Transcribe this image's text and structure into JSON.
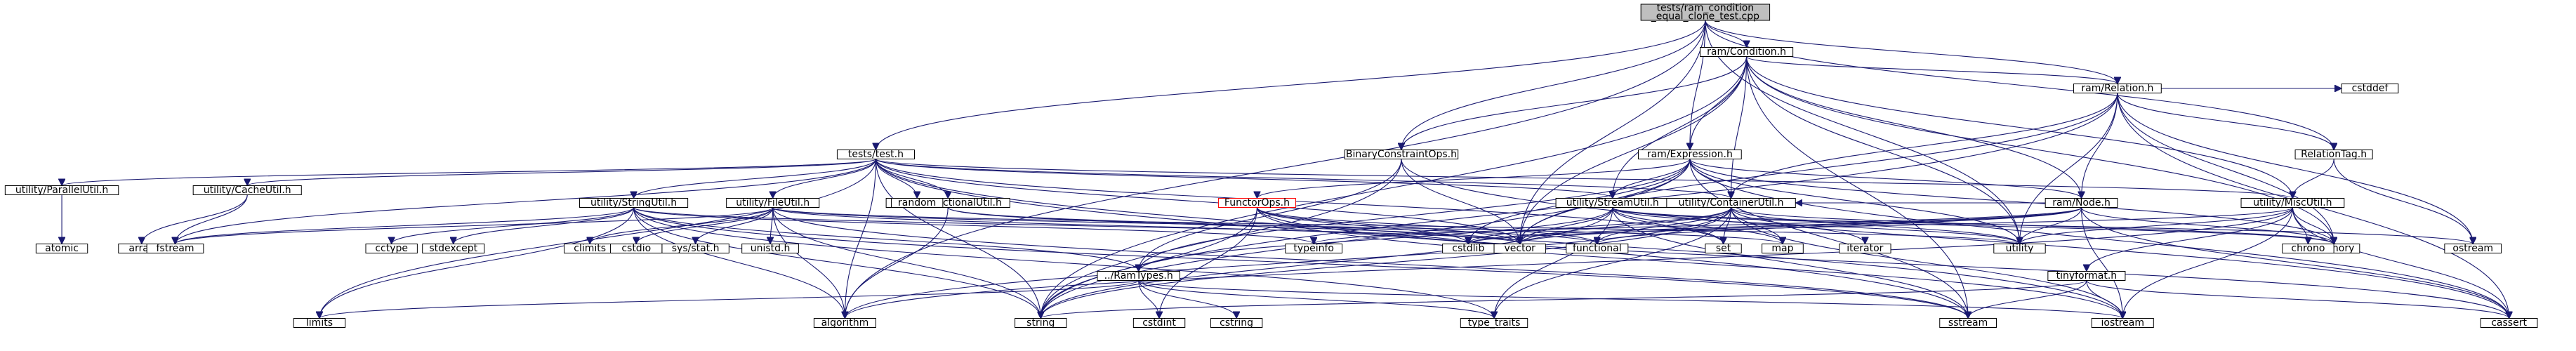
{
  "diagram": {
    "root": "tests_ram_condition_equal_clone_test",
    "nodes": [
      {
        "id": "tests_ram_condition_equal_clone_test",
        "lines": [
          "tests/ram_condition",
          "_equal_clone_test.cpp"
        ],
        "style": "root"
      },
      {
        "id": "ram_Condition_h",
        "lines": [
          "ram/Condition.h"
        ],
        "style": "file"
      },
      {
        "id": "ram_Relation_h",
        "lines": [
          "ram/Relation.h"
        ],
        "style": "file"
      },
      {
        "id": "BinaryConstraintOps_h",
        "lines": [
          "BinaryConstraintOps.h"
        ],
        "style": "file"
      },
      {
        "id": "ram_Expression_h",
        "lines": [
          "ram/Expression.h"
        ],
        "style": "file"
      },
      {
        "id": "tests_test_h",
        "lines": [
          "tests/test.h"
        ],
        "style": "file"
      },
      {
        "id": "RelationTag_h",
        "lines": [
          "RelationTag.h"
        ],
        "style": "file"
      },
      {
        "id": "utility_ParallelUtil_h",
        "lines": [
          "utility/ParallelUtil.h"
        ],
        "style": "file"
      },
      {
        "id": "utility_CacheUtil_h",
        "lines": [
          "utility/CacheUtil.h"
        ],
        "style": "file"
      },
      {
        "id": "utility_StringUtil_h",
        "lines": [
          "utility/StringUtil.h"
        ],
        "style": "file"
      },
      {
        "id": "utility_FileUtil_h",
        "lines": [
          "utility/FileUtil.h"
        ],
        "style": "file"
      },
      {
        "id": "utility_FunctionalUtil_h",
        "lines": [
          "utility/FunctionalUtil.h"
        ],
        "style": "file"
      },
      {
        "id": "FunctorOps_h",
        "lines": [
          "FunctorOps.h"
        ],
        "style": "red"
      },
      {
        "id": "utility_StreamUtil_h",
        "lines": [
          "utility/StreamUtil.h"
        ],
        "style": "file"
      },
      {
        "id": "utility_ContainerUtil_h",
        "lines": [
          "utility/ContainerUtil.h"
        ],
        "style": "file"
      },
      {
        "id": "ram_Node_h",
        "lines": [
          "ram/Node.h"
        ],
        "style": "file"
      },
      {
        "id": "utility_MiscUtil_h",
        "lines": [
          "utility/MiscUtil.h"
        ],
        "style": "file"
      },
      {
        "id": "RamTypes_h",
        "lines": [
          "../RamTypes.h"
        ],
        "style": "file"
      },
      {
        "id": "tinyformat_h",
        "lines": [
          "tinyformat.h"
        ],
        "style": "file"
      },
      {
        "id": "random",
        "lines": [
          "random"
        ],
        "style": "file"
      },
      {
        "id": "cstddef",
        "lines": [
          "cstddef"
        ],
        "style": "file"
      },
      {
        "id": "atomic",
        "lines": [
          "atomic"
        ],
        "style": "file"
      },
      {
        "id": "array",
        "lines": [
          "array"
        ],
        "style": "file"
      },
      {
        "id": "fstream",
        "lines": [
          "fstream"
        ],
        "style": "file"
      },
      {
        "id": "cctype",
        "lines": [
          "cctype"
        ],
        "style": "file"
      },
      {
        "id": "stdexcept",
        "lines": [
          "stdexcept"
        ],
        "style": "file"
      },
      {
        "id": "climits",
        "lines": [
          "climits"
        ],
        "style": "file"
      },
      {
        "id": "cstdio",
        "lines": [
          "cstdio"
        ],
        "style": "file"
      },
      {
        "id": "sys_stat_h",
        "lines": [
          "sys/stat.h"
        ],
        "style": "file"
      },
      {
        "id": "unistd_h",
        "lines": [
          "unistd.h"
        ],
        "style": "file"
      },
      {
        "id": "typeinfo",
        "lines": [
          "typeinfo"
        ],
        "style": "file"
      },
      {
        "id": "cstdlib",
        "lines": [
          "cstdlib"
        ],
        "style": "file"
      },
      {
        "id": "vector",
        "lines": [
          "vector"
        ],
        "style": "file"
      },
      {
        "id": "functional",
        "lines": [
          "functional"
        ],
        "style": "file"
      },
      {
        "id": "set",
        "lines": [
          "set"
        ],
        "style": "file"
      },
      {
        "id": "map",
        "lines": [
          "map"
        ],
        "style": "file"
      },
      {
        "id": "iterator",
        "lines": [
          "iterator"
        ],
        "style": "file"
      },
      {
        "id": "utility",
        "lines": [
          "utility"
        ],
        "style": "file"
      },
      {
        "id": "memory",
        "lines": [
          "memory"
        ],
        "style": "file"
      },
      {
        "id": "ostream",
        "lines": [
          "ostream"
        ],
        "style": "file"
      },
      {
        "id": "chrono",
        "lines": [
          "chrono"
        ],
        "style": "file"
      },
      {
        "id": "limits",
        "lines": [
          "limits"
        ],
        "style": "file"
      },
      {
        "id": "algorithm",
        "lines": [
          "algorithm"
        ],
        "style": "file"
      },
      {
        "id": "string",
        "lines": [
          "string"
        ],
        "style": "file"
      },
      {
        "id": "cstdint",
        "lines": [
          "cstdint"
        ],
        "style": "file"
      },
      {
        "id": "cstring",
        "lines": [
          "cstring"
        ],
        "style": "file"
      },
      {
        "id": "type_traits",
        "lines": [
          "type_traits"
        ],
        "style": "file"
      },
      {
        "id": "sstream",
        "lines": [
          "sstream"
        ],
        "style": "file"
      },
      {
        "id": "iostream",
        "lines": [
          "iostream"
        ],
        "style": "file"
      },
      {
        "id": "cassert",
        "lines": [
          "cassert"
        ],
        "style": "file"
      }
    ],
    "edges": [
      [
        "tests_ram_condition_equal_clone_test",
        "ram_Condition_h"
      ],
      [
        "tests_ram_condition_equal_clone_test",
        "ram_Relation_h"
      ],
      [
        "tests_ram_condition_equal_clone_test",
        "BinaryConstraintOps_h"
      ],
      [
        "tests_ram_condition_equal_clone_test",
        "ram_Expression_h"
      ],
      [
        "tests_ram_condition_equal_clone_test",
        "tests_test_h"
      ],
      [
        "tests_ram_condition_equal_clone_test",
        "RelationTag_h"
      ],
      [
        "tests_ram_condition_equal_clone_test",
        "utility"
      ],
      [
        "tests_ram_condition_equal_clone_test",
        "vector"
      ],
      [
        "tests_ram_condition_equal_clone_test",
        "algorithm"
      ],
      [
        "ram_Condition_h",
        "ram_Relation_h"
      ],
      [
        "ram_Condition_h",
        "BinaryConstraintOps_h"
      ],
      [
        "ram_Condition_h",
        "ram_Expression_h"
      ],
      [
        "ram_Condition_h",
        "ram_Node_h"
      ],
      [
        "ram_Condition_h",
        "utility_ContainerUtil_h"
      ],
      [
        "ram_Condition_h",
        "utility_StreamUtil_h"
      ],
      [
        "ram_Condition_h",
        "utility_MiscUtil_h"
      ],
      [
        "ram_Condition_h",
        "memory"
      ],
      [
        "ram_Condition_h",
        "utility"
      ],
      [
        "ram_Condition_h",
        "vector"
      ],
      [
        "ram_Condition_h",
        "string"
      ],
      [
        "ram_Condition_h",
        "sstream"
      ],
      [
        "ram_Relation_h",
        "RelationTag_h"
      ],
      [
        "ram_Relation_h",
        "ram_Node_h"
      ],
      [
        "ram_Relation_h",
        "utility_ContainerUtil_h"
      ],
      [
        "ram_Relation_h",
        "cstddef"
      ],
      [
        "ram_Relation_h",
        "memory"
      ],
      [
        "ram_Relation_h",
        "ostream"
      ],
      [
        "ram_Relation_h",
        "string"
      ],
      [
        "ram_Relation_h",
        "utility"
      ],
      [
        "ram_Relation_h",
        "vector"
      ],
      [
        "ram_Relation_h",
        "cassert"
      ],
      [
        "BinaryConstraintOps_h",
        "RamTypes_h"
      ],
      [
        "BinaryConstraintOps_h",
        "vector"
      ],
      [
        "BinaryConstraintOps_h",
        "string"
      ],
      [
        "BinaryConstraintOps_h",
        "cassert"
      ],
      [
        "ram_Expression_h",
        "FunctorOps_h"
      ],
      [
        "ram_Expression_h",
        "RamTypes_h"
      ],
      [
        "ram_Expression_h",
        "ram_Node_h"
      ],
      [
        "ram_Expression_h",
        "utility_ContainerUtil_h"
      ],
      [
        "ram_Expression_h",
        "utility_StreamUtil_h"
      ],
      [
        "ram_Expression_h",
        "memory"
      ],
      [
        "ram_Expression_h",
        "utility"
      ],
      [
        "ram_Expression_h",
        "vector"
      ],
      [
        "ram_Expression_h",
        "string"
      ],
      [
        "ram_Expression_h",
        "sstream"
      ],
      [
        "ram_Expression_h",
        "cassert"
      ],
      [
        "ram_Expression_h",
        "cstdlib"
      ],
      [
        "tests_test_h",
        "utility_ParallelUtil_h"
      ],
      [
        "tests_test_h",
        "utility_CacheUtil_h"
      ],
      [
        "tests_test_h",
        "utility_StringUtil_h"
      ],
      [
        "tests_test_h",
        "utility_FileUtil_h"
      ],
      [
        "tests_test_h",
        "utility_FunctionalUtil_h"
      ],
      [
        "tests_test_h",
        "utility_ContainerUtil_h"
      ],
      [
        "tests_test_h",
        "utility_StreamUtil_h"
      ],
      [
        "tests_test_h",
        "utility_MiscUtil_h"
      ],
      [
        "tests_test_h",
        "random"
      ],
      [
        "tests_test_h",
        "set"
      ],
      [
        "tests_test_h",
        "vector"
      ],
      [
        "tests_test_h",
        "string"
      ],
      [
        "tests_test_h",
        "iostream"
      ],
      [
        "tests_test_h",
        "limits"
      ],
      [
        "tests_test_h",
        "fstream"
      ],
      [
        "tests_test_h",
        "sstream"
      ],
      [
        "tests_test_h",
        "algorithm"
      ],
      [
        "RelationTag_h",
        "utility_MiscUtil_h"
      ],
      [
        "RelationTag_h",
        "ostream"
      ],
      [
        "utility_ParallelUtil_h",
        "atomic"
      ],
      [
        "utility_CacheUtil_h",
        "array"
      ],
      [
        "utility_CacheUtil_h",
        "fstream"
      ],
      [
        "utility_StringUtil_h",
        "RamTypes_h"
      ],
      [
        "utility_StringUtil_h",
        "cctype"
      ],
      [
        "utility_StringUtil_h",
        "stdexcept"
      ],
      [
        "utility_StringUtil_h",
        "fstream"
      ],
      [
        "utility_StringUtil_h",
        "limits"
      ],
      [
        "utility_StringUtil_h",
        "string"
      ],
      [
        "utility_StringUtil_h",
        "sstream"
      ],
      [
        "utility_StringUtil_h",
        "vector"
      ],
      [
        "utility_StringUtil_h",
        "algorithm"
      ],
      [
        "utility_StringUtil_h",
        "type_traits"
      ],
      [
        "utility_StringUtil_h",
        "typeinfo"
      ],
      [
        "utility_FileUtil_h",
        "climits"
      ],
      [
        "utility_FileUtil_h",
        "cstdio"
      ],
      [
        "utility_FileUtil_h",
        "sys_stat_h"
      ],
      [
        "utility_FileUtil_h",
        "unistd_h"
      ],
      [
        "utility_FileUtil_h",
        "cstdlib"
      ],
      [
        "utility_FileUtil_h",
        "fstream"
      ],
      [
        "utility_FileUtil_h",
        "map"
      ],
      [
        "utility_FileUtil_h",
        "string"
      ],
      [
        "utility_FileUtil_h",
        "utility"
      ],
      [
        "utility_FileUtil_h",
        "sstream"
      ],
      [
        "utility_FileUtil_h",
        "algorithm"
      ],
      [
        "utility_FunctionalUtil_h",
        "algorithm"
      ],
      [
        "utility_FunctionalUtil_h",
        "vector"
      ],
      [
        "utility_FunctionalUtil_h",
        "functional"
      ],
      [
        "FunctorOps_h",
        "cstdlib"
      ],
      [
        "FunctorOps_h",
        "vector"
      ],
      [
        "FunctorOps_h",
        "functional"
      ],
      [
        "FunctorOps_h",
        "string"
      ],
      [
        "FunctorOps_h",
        "cassert"
      ],
      [
        "FunctorOps_h",
        "iostream"
      ],
      [
        "FunctorOps_h",
        "cstdint"
      ],
      [
        "utility_StreamUtil_h",
        "RamTypes_h"
      ],
      [
        "utility_StreamUtil_h",
        "set"
      ],
      [
        "utility_StreamUtil_h",
        "map"
      ],
      [
        "utility_StreamUtil_h",
        "utility"
      ],
      [
        "utility_StreamUtil_h",
        "vector"
      ],
      [
        "utility_StreamUtil_h",
        "string"
      ],
      [
        "utility_StreamUtil_h",
        "sstream"
      ],
      [
        "utility_StreamUtil_h",
        "memory"
      ],
      [
        "utility_StreamUtil_h",
        "ostream"
      ],
      [
        "utility_StreamUtil_h",
        "type_traits"
      ],
      [
        "utility_ContainerUtil_h",
        "cstdlib"
      ],
      [
        "utility_ContainerUtil_h",
        "functional"
      ],
      [
        "utility_ContainerUtil_h",
        "map"
      ],
      [
        "utility_ContainerUtil_h",
        "iterator"
      ],
      [
        "utility_ContainerUtil_h",
        "utility"
      ],
      [
        "utility_ContainerUtil_h",
        "memory"
      ],
      [
        "utility_ContainerUtil_h",
        "vector"
      ],
      [
        "utility_ContainerUtil_h",
        "set"
      ],
      [
        "utility_ContainerUtil_h",
        "type_traits"
      ],
      [
        "utility_ContainerUtil_h",
        "iostream"
      ],
      [
        "utility_ContainerUtil_h",
        "string"
      ],
      [
        "utility_ContainerUtil_h",
        "algorithm"
      ],
      [
        "ram_Node_h",
        "utility_ContainerUtil_h"
      ],
      [
        "ram_Node_h",
        "utility"
      ],
      [
        "ram_Node_h",
        "memory"
      ],
      [
        "ram_Node_h",
        "vector"
      ],
      [
        "ram_Node_h",
        "functional"
      ],
      [
        "ram_Node_h",
        "typeinfo"
      ],
      [
        "ram_Node_h",
        "iostream"
      ],
      [
        "ram_Node_h",
        "cassert"
      ],
      [
        "ram_Node_h",
        "cstdlib"
      ],
      [
        "utility_MiscUtil_h",
        "tinyformat_h"
      ],
      [
        "utility_MiscUtil_h",
        "chrono"
      ],
      [
        "utility_MiscUtil_h",
        "memory"
      ],
      [
        "utility_MiscUtil_h",
        "utility"
      ],
      [
        "utility_MiscUtil_h",
        "cassert"
      ],
      [
        "utility_MiscUtil_h",
        "iostream"
      ],
      [
        "utility_MiscUtil_h",
        "cstdlib"
      ],
      [
        "utility_MiscUtil_h",
        "algorithm"
      ],
      [
        "RamTypes_h",
        "limits"
      ],
      [
        "RamTypes_h",
        "cstdint"
      ],
      [
        "RamTypes_h",
        "cstring"
      ],
      [
        "RamTypes_h",
        "type_traits"
      ],
      [
        "RamTypes_h",
        "iostream"
      ],
      [
        "tinyformat_h",
        "cassert"
      ],
      [
        "tinyformat_h",
        "iostream"
      ],
      [
        "tinyformat_h",
        "sstream"
      ],
      [
        "tinyformat_h",
        "string"
      ]
    ]
  }
}
